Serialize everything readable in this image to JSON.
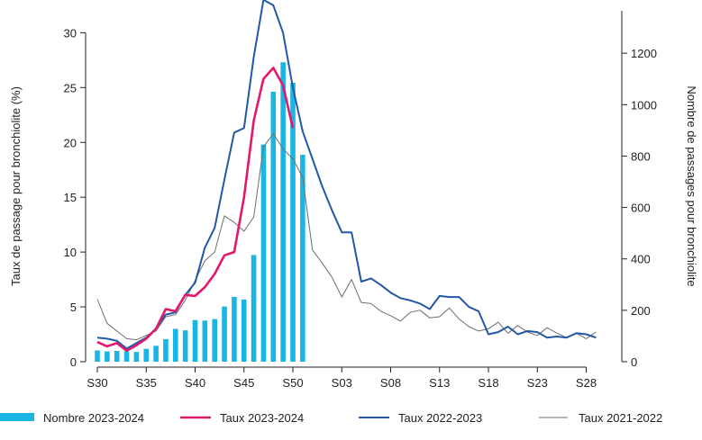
{
  "colors": {
    "bars": "#19b6e3",
    "taux_2023_2024": "#e3186b",
    "taux_2022_2023": "#2358a8",
    "taux_2021_2022": "#6e6e6e",
    "axis": "#222222"
  },
  "chart_data": {
    "type": "bar",
    "title": "",
    "ylabel_left": "Taux de passage pour bronchiolite (%)",
    "ylabel_right": "Nombre de passages pour bronchiolite",
    "ylim_left": [
      0,
      32
    ],
    "ylim_right": [
      0,
      1365
    ],
    "yticks_left": [
      "0",
      "5",
      "10",
      "15",
      "20",
      "25",
      "30"
    ],
    "yticks_right": [
      "0",
      "200",
      "400",
      "600",
      "800",
      "1000",
      "1200"
    ],
    "xtick_labels": [
      "S30",
      "S35",
      "S40",
      "S45",
      "S50",
      "S03",
      "S08",
      "S13",
      "S18",
      "S23",
      "S28"
    ],
    "grid": false,
    "legend_position": "bottom",
    "legend": [
      "Nombre 2023-2024",
      "Taux 2023-2024",
      "Taux 2022-2023",
      "Taux 2021-2022"
    ],
    "series": [
      {
        "name": "Nombre 2023-2024",
        "type": "bar",
        "axis": "right",
        "values": [
          44,
          40,
          42,
          40,
          38,
          50,
          62,
          88,
          128,
          122,
          162,
          160,
          166,
          215,
          252,
          242,
          415,
          845,
          1050,
          1165,
          1085,
          805
        ]
      },
      {
        "name": "Taux 2023-2024",
        "type": "line",
        "axis": "left",
        "values": [
          1.8,
          1.4,
          1.7,
          1.0,
          1.5,
          2.1,
          3.0,
          4.8,
          4.6,
          6.1,
          6.0,
          6.8,
          8.0,
          9.7,
          10.0,
          15.0,
          22.0,
          25.8,
          26.8,
          25.2,
          21.3
        ]
      },
      {
        "name": "Taux 2022-2023",
        "type": "line",
        "axis": "left",
        "values": [
          2.2,
          2.1,
          1.9,
          1.2,
          1.7,
          2.2,
          3.0,
          4.3,
          4.5,
          6.1,
          7.2,
          10.4,
          12.2,
          16.6,
          20.9,
          21.3,
          27.8,
          33.0,
          32.5,
          30.0,
          25.0,
          21.0,
          18.5,
          16.0,
          13.8,
          11.8,
          11.8,
          7.3,
          7.6,
          7.0,
          6.3,
          5.8,
          5.6,
          5.3,
          4.8,
          6.0,
          5.9,
          5.9,
          5.0,
          4.6,
          2.5,
          2.7,
          3.2,
          2.5,
          2.8,
          2.7,
          2.2,
          2.3,
          2.2,
          2.6,
          2.5,
          2.2
        ]
      },
      {
        "name": "Taux 2021-2022",
        "type": "line",
        "axis": "left",
        "values": [
          5.7,
          3.5,
          2.8,
          2.1,
          2.0,
          2.4,
          2.8,
          4.1,
          4.3,
          5.6,
          7.4,
          9.2,
          10.0,
          13.3,
          12.7,
          11.9,
          13.2,
          19.6,
          20.8,
          19.4,
          18.5,
          16.8,
          10.2,
          9.0,
          7.7,
          5.9,
          7.5,
          5.4,
          5.3,
          4.6,
          4.2,
          3.7,
          4.5,
          4.7,
          4.0,
          4.1,
          4.9,
          3.9,
          3.2,
          2.8,
          3.0,
          3.6,
          2.6,
          3.3,
          2.7,
          2.4,
          3.1,
          2.6,
          2.2,
          2.6,
          2.1,
          2.7
        ]
      }
    ]
  }
}
